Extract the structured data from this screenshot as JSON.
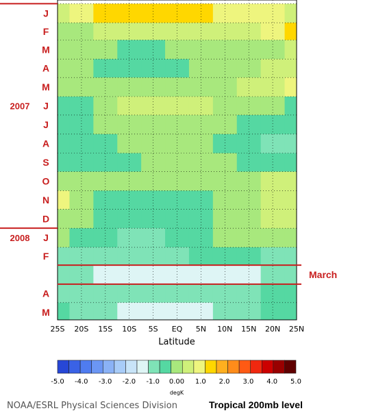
{
  "chart_data": {
    "type": "heatmap",
    "title": "Tropical 200mb level",
    "credit": "NOAA/ESRL Physical Sciences Division",
    "xlabel": "Latitude",
    "x_ticks": [
      "25S",
      "20S",
      "15S",
      "10S",
      "5S",
      "EQ",
      "5N",
      "10N",
      "15N",
      "20N",
      "25N"
    ],
    "x_range": [
      -25,
      25
    ],
    "month_labels": [
      {
        "label": "J",
        "month": "2007-01"
      },
      {
        "label": "F",
        "month": "2007-02"
      },
      {
        "label": "M",
        "month": "2007-03"
      },
      {
        "label": "A",
        "month": "2007-04"
      },
      {
        "label": "M",
        "month": "2007-05"
      },
      {
        "label": "J",
        "month": "2007-06"
      },
      {
        "label": "J",
        "month": "2007-07"
      },
      {
        "label": "A",
        "month": "2007-08"
      },
      {
        "label": "S",
        "month": "2007-09"
      },
      {
        "label": "O",
        "month": "2007-10"
      },
      {
        "label": "N",
        "month": "2007-11"
      },
      {
        "label": "D",
        "month": "2007-12"
      },
      {
        "label": "J",
        "month": "2008-01"
      },
      {
        "label": "F",
        "month": "2008-02"
      },
      {
        "label": "A",
        "month": "2008-04"
      },
      {
        "label": "M",
        "month": "2008-05"
      }
    ],
    "year_labels": [
      {
        "label": "2007",
        "month": "2007-06"
      },
      {
        "label": "2008",
        "month": "2008-01"
      }
    ],
    "year_separators": [
      "2007-01",
      "2008-01"
    ],
    "highlight": {
      "label": "March",
      "from": "2008-03-01",
      "to": "2008-04-01"
    },
    "colorbar": {
      "unit": "degK",
      "tick_labels": [
        "-5.0",
        "-4.0",
        "-3.0",
        "-2.0",
        "-1.0",
        "0.00",
        "1.0",
        "2.0",
        "3.0",
        "4.0",
        "5.0"
      ],
      "levels": [
        -5,
        -4.5,
        -4,
        -3.5,
        -3,
        -2.5,
        -2,
        -1.5,
        -1,
        -0.5,
        0,
        0.5,
        1,
        1.5,
        2,
        2.5,
        3,
        3.5,
        4,
        4.5,
        5
      ],
      "colors": [
        "#2747d6",
        "#3a62e6",
        "#4f7cf0",
        "#6b96f4",
        "#8ab2f6",
        "#a8ccf8",
        "#c8e4f8",
        "#def5f5",
        "#7fe3b7",
        "#55d8a2",
        "#a8e87d",
        "#cff07a",
        "#eef57e",
        "#ffd700",
        "#ffaf1f",
        "#ff8c1a",
        "#ff5a14",
        "#f0280f",
        "#cc0000",
        "#990000",
        "#600000"
      ]
    },
    "value_bands": [
      {
        "from": "2007-01-01",
        "to": "2007-02-01",
        "lat_values": [
          0.8,
          1.2,
          1.6,
          1.8,
          1.8,
          1.7,
          1.6,
          1.4,
          1.2,
          1.0,
          0.8
        ]
      },
      {
        "from": "2007-02-01",
        "to": "2007-03-01",
        "lat_values": [
          0.3,
          0.4,
          0.5,
          0.5,
          0.5,
          0.5,
          0.6,
          0.7,
          0.9,
          1.4,
          1.6
        ]
      },
      {
        "from": "2007-03-01",
        "to": "2007-04-01",
        "lat_values": [
          0.4,
          0.2,
          0.0,
          -0.2,
          -0.1,
          0.1,
          0.2,
          0.2,
          0.3,
          0.4,
          0.5
        ]
      },
      {
        "from": "2007-04-01",
        "to": "2007-05-01",
        "lat_values": [
          0.2,
          0.1,
          -0.3,
          -0.5,
          -0.4,
          -0.2,
          0.0,
          0.2,
          0.3,
          0.6,
          0.7
        ]
      },
      {
        "from": "2007-05-01",
        "to": "2007-06-01",
        "lat_values": [
          0.3,
          0.2,
          0.1,
          0.0,
          0.0,
          0.1,
          0.2,
          0.4,
          0.6,
          0.8,
          1.0
        ]
      },
      {
        "from": "2007-06-01",
        "to": "2007-07-01",
        "lat_values": [
          -0.2,
          -0.1,
          0.3,
          0.6,
          0.7,
          0.6,
          0.5,
          0.3,
          0.1,
          0.0,
          -0.1
        ]
      },
      {
        "from": "2007-07-01",
        "to": "2007-08-01",
        "lat_values": [
          -0.3,
          -0.2,
          0.1,
          0.3,
          0.4,
          0.4,
          0.3,
          0.1,
          -0.1,
          -0.2,
          -0.3
        ]
      },
      {
        "from": "2007-08-01",
        "to": "2007-09-01",
        "lat_values": [
          -0.5,
          -0.5,
          -0.3,
          0.0,
          0.1,
          0.1,
          0.0,
          -0.2,
          -0.4,
          -0.6,
          -0.7
        ]
      },
      {
        "from": "2007-09-01",
        "to": "2007-10-01",
        "lat_values": [
          -0.5,
          -0.4,
          -0.2,
          -0.1,
          0.1,
          0.2,
          0.1,
          0.0,
          -0.2,
          -0.3,
          -0.3
        ]
      },
      {
        "from": "2007-10-01",
        "to": "2007-11-01",
        "lat_values": [
          0.0,
          0.1,
          0.2,
          0.2,
          0.1,
          0.1,
          0.0,
          0.1,
          0.3,
          0.6,
          0.7
        ]
      },
      {
        "from": "2007-11-01",
        "to": "2007-12-01",
        "lat_values": [
          1.1,
          0.4,
          -0.1,
          -0.2,
          -0.3,
          -0.2,
          -0.1,
          0.0,
          0.2,
          0.5,
          0.6
        ]
      },
      {
        "from": "2007-12-01",
        "to": "2008-01-01",
        "lat_values": [
          0.1,
          0.0,
          -0.2,
          -0.3,
          -0.3,
          -0.2,
          -0.1,
          0.1,
          0.3,
          0.6,
          0.8
        ]
      },
      {
        "from": "2008-01-01",
        "to": "2008-02-01",
        "lat_values": [
          0.0,
          -0.3,
          -0.5,
          -0.6,
          -0.6,
          -0.5,
          -0.3,
          0.0,
          0.3,
          0.4,
          0.3
        ]
      },
      {
        "from": "2008-02-01",
        "to": "2008-03-01",
        "lat_values": [
          -0.7,
          -0.8,
          -0.8,
          -0.7,
          -0.6,
          -0.6,
          -0.5,
          -0.5,
          -0.5,
          -0.7,
          -0.8
        ]
      },
      {
        "from": "2008-03-01",
        "to": "2008-04-01",
        "lat_values": [
          -0.8,
          -1.0,
          -1.2,
          -1.4,
          -1.5,
          -1.5,
          -1.4,
          -1.3,
          -1.1,
          -0.9,
          -0.7
        ]
      },
      {
        "from": "2008-04-01",
        "to": "2008-05-01",
        "lat_values": [
          -0.6,
          -0.7,
          -0.8,
          -0.9,
          -1.0,
          -1.0,
          -1.0,
          -0.9,
          -0.7,
          -0.5,
          -0.4
        ]
      },
      {
        "from": "2008-05-01",
        "to": "2008-06-01",
        "lat_values": [
          -0.5,
          -0.7,
          -1.0,
          -1.2,
          -1.3,
          -1.3,
          -1.2,
          -1.0,
          -0.7,
          -0.4,
          -0.2
        ]
      }
    ]
  }
}
